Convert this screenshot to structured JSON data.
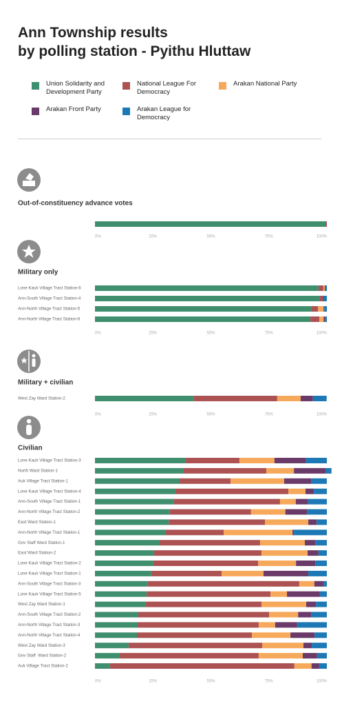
{
  "title": "Ann Township results\nby polling station - Pyithu Hluttaw",
  "legend": [
    {
      "name": "Union Solidarity and Development Party",
      "color": "#3f8f6e"
    },
    {
      "name": "National League For Democracy",
      "color": "#ad5253"
    },
    {
      "name": "Arakan National Party",
      "color": "#f7a95b"
    },
    {
      "name": "Arakan Front Party",
      "color": "#6a3a68"
    },
    {
      "name": "Arakan League for Democracy",
      "color": "#1c79b6"
    }
  ],
  "chart_data": [
    {
      "type": "bar",
      "orientation": "horizontal",
      "stacked": true,
      "title": "Out-of-constituency advance votes",
      "categories": [
        null
      ],
      "series": [
        {
          "values": [
            99.4
          ]
        },
        {
          "values": [
            0.6
          ]
        },
        {
          "values": [
            0
          ]
        },
        {
          "values": [
            0
          ]
        },
        {
          "values": [
            0
          ]
        }
      ],
      "xlim": [
        0,
        100
      ],
      "xticks": [
        {
          "value": 0,
          "label": "0%"
        },
        {
          "value": 25,
          "label": "25%"
        },
        {
          "value": 50,
          "label": "50%"
        },
        {
          "value": 75,
          "label": "75%"
        },
        {
          "value": 100,
          "label": "100%"
        }
      ]
    },
    {
      "type": "bar",
      "orientation": "horizontal",
      "stacked": true,
      "title": "Military only",
      "categories": [
        "Lone Kauk Village Tract Station-6",
        "Ann-South Village Tract Station-4",
        "Ann-North Village Tract Station-5",
        "Ann-North Village Tract Station-6"
      ],
      "series": [
        {
          "values": [
            96.4,
            96.7,
            93.2,
            92.9
          ]
        },
        {
          "values": [
            2.1,
            1.5,
            3.0,
            3.9
          ]
        },
        {
          "values": [
            0.6,
            0,
            2.4,
            1.8
          ]
        },
        {
          "values": [
            0.3,
            0.3,
            0.3,
            0.6
          ]
        },
        {
          "values": [
            0.6,
            1.5,
            1.1,
            0.8
          ]
        }
      ],
      "xlim": [
        0,
        100
      ],
      "xticks": [
        {
          "value": 0,
          "label": "0%"
        },
        {
          "value": 25,
          "label": "25%"
        },
        {
          "value": 50,
          "label": "50%"
        },
        {
          "value": 75,
          "label": "75%"
        },
        {
          "value": 100,
          "label": "100%"
        }
      ]
    },
    {
      "type": "bar",
      "orientation": "horizontal",
      "stacked": true,
      "title": "Military + civilian",
      "categories": [
        "West Zay Ward Station-2"
      ],
      "series": [
        {
          "values": [
            42.7
          ]
        },
        {
          "values": [
            35.9
          ]
        },
        {
          "values": [
            10.1
          ]
        },
        {
          "values": [
            5.3
          ]
        },
        {
          "values": [
            5.9
          ]
        }
      ],
      "xlim": [
        0,
        100
      ],
      "xticks": [
        {
          "value": 0,
          "label": "0%"
        },
        {
          "value": 25,
          "label": "25%"
        },
        {
          "value": 50,
          "label": "50%"
        },
        {
          "value": 75,
          "label": "75%"
        },
        {
          "value": 100,
          "label": "100%"
        }
      ]
    },
    {
      "type": "bar",
      "orientation": "horizontal",
      "stacked": true,
      "title": "Civilian",
      "categories": [
        "Lone Kauk Village Tract Station-3",
        "North Ward Station-1",
        "Auk Village Tract Station-1",
        "Lone Kauk Village Tract Station-4",
        "Ann-South Village Tract Station-1",
        "Ann-North Village Tract Station-2",
        "East Ward Station-1",
        "Ann-North Village Tract Station-1",
        "Gov Staff Ward Station-1",
        "East Ward Station-2",
        "Lone Kauk Village Tract Station-2",
        "Lone Kauk Village Tract Station-1",
        "Ann-South Village Tract Station-3",
        "Lone Kauk Village Tract Station-5",
        "West Zay Ward Station-1",
        "Ann-South Village Tract Station-2",
        "Ann-North Village Tract Station-3",
        "Ann-North Village Tract Station-4",
        "West Zay Ward Station-3",
        "Gov Staff  Ward Station-2",
        "Auk Village Tract Station-2"
      ],
      "series": [
        {
          "values": [
            39.2,
            38.0,
            36.5,
            34.7,
            34.1,
            32.3,
            31.8,
            30.3,
            27.9,
            25.5,
            25.2,
            24.3,
            22.8,
            22.3,
            21.7,
            18.7,
            18.4,
            18.1,
            14.5,
            10.7,
            6.5
          ]
        },
        {
          "values": [
            23.1,
            35.9,
            22.0,
            48.7,
            45.7,
            35.0,
            41.5,
            25.2,
            43.3,
            46.3,
            45.2,
            30.3,
            65.3,
            53.4,
            50.1,
            56.4,
            52.2,
            49.6,
            57.6,
            59.9,
            79.5
          ]
        },
        {
          "values": [
            15.1,
            11.9,
            23.1,
            7.4,
            6.8,
            14.8,
            18.7,
            29.7,
            19.3,
            19.9,
            16.3,
            18.1,
            6.5,
            7.1,
            19.3,
            12.5,
            7.1,
            16.6,
            17.8,
            19.0,
            7.4
          ]
        },
        {
          "values": [
            13.6,
            13.6,
            11.6,
            3.6,
            5.3,
            9.5,
            3.6,
            0.6,
            4.5,
            4.7,
            8.3,
            19.3,
            3.9,
            14.2,
            4.2,
            5.6,
            9.5,
            10.4,
            3.6,
            6.2,
            3.3
          ]
        },
        {
          "values": [
            9.0,
            2.6,
            6.8,
            5.6,
            8.1,
            8.4,
            4.4,
            14.2,
            5.0,
            3.6,
            5.0,
            8.0,
            1.5,
            3.0,
            4.7,
            6.8,
            12.8,
            5.3,
            6.5,
            4.2,
            3.3
          ]
        }
      ],
      "xlim": [
        0,
        100
      ],
      "xticks": [
        {
          "value": 0,
          "label": "0%"
        },
        {
          "value": 25,
          "label": "25%"
        },
        {
          "value": 50,
          "label": "50%"
        },
        {
          "value": 75,
          "label": "75%"
        },
        {
          "value": 100,
          "label": "100%"
        }
      ]
    }
  ]
}
